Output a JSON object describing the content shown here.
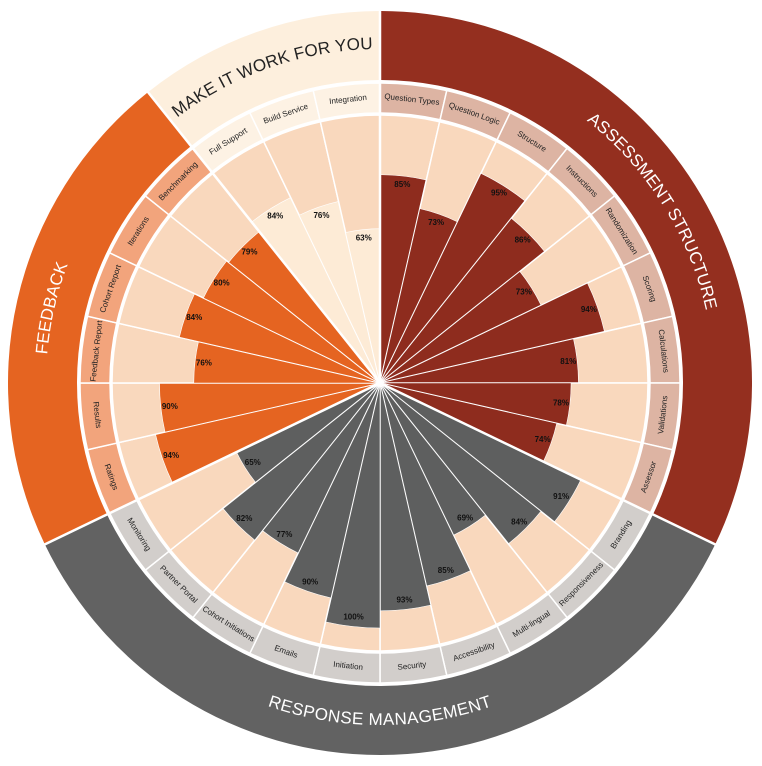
{
  "chart_data": {
    "type": "radial_bar",
    "vlim": [
      0,
      100
    ],
    "track_color": "#F9D8BD",
    "series": [
      {
        "name": "ASSESSMENT STRUCTURE",
        "color": "#8E2C1E",
        "band_color": "#942F1F",
        "label_color": "#DDB4A3",
        "title_color": "#FFFFFF",
        "categories": [
          "Question Types",
          "Question Logic",
          "Structure",
          "Instructions",
          "Randomization",
          "Scoring",
          "Calculations",
          "Validations",
          "Assessor"
        ],
        "values": [
          85,
          73,
          95,
          86,
          73,
          94,
          81,
          78,
          74
        ],
        "value_labels": [
          "85%",
          "73%",
          "95%",
          "86%",
          "73%",
          "94%",
          "81%",
          "78%",
          "74%"
        ]
      },
      {
        "name": "RESPONSE MANAGEMENT",
        "color": "#5E5F5F",
        "band_color": "#626262",
        "label_color": "#D2CECB",
        "title_color": "#FFFFFF",
        "categories": [
          "Branding",
          "Responsiveness",
          "Multi-lingual",
          "Accessibility",
          "Security",
          "Initiation",
          "Emails",
          "Cohort Initiations",
          "Partner Portal",
          "Monitoring"
        ],
        "values": [
          91,
          84,
          69,
          85,
          93,
          100,
          90,
          77,
          82,
          65
        ],
        "value_labels": [
          "91%",
          "84%",
          "69%",
          "85%",
          "93%",
          "100%",
          "90%",
          "77%",
          "82%",
          "65%"
        ]
      },
      {
        "name": "FEEDBACK",
        "color": "#E56421",
        "band_color": "#E56421",
        "label_color": "#F2A47C",
        "title_color": "#FFFFFF",
        "categories": [
          "Ratings",
          "Results",
          "Feedback Report",
          "Cohort Report",
          "Iterations",
          "Benchmarking"
        ],
        "values": [
          94,
          90,
          76,
          84,
          80,
          79
        ],
        "value_labels": [
          "94%",
          "90%",
          "76%",
          "84%",
          "80%",
          "79%"
        ]
      },
      {
        "name": "MAKE IT WORK FOR YOU",
        "color": "#FDEBD6",
        "band_color": "#FDEFDD",
        "label_color": "#FDF2E4",
        "title_color": "#222222",
        "categories": [
          "Full Support",
          "Build Service",
          "Integration"
        ],
        "values": [
          84,
          76,
          63
        ],
        "value_labels": [
          "84%",
          "76%",
          "63%"
        ]
      }
    ]
  }
}
